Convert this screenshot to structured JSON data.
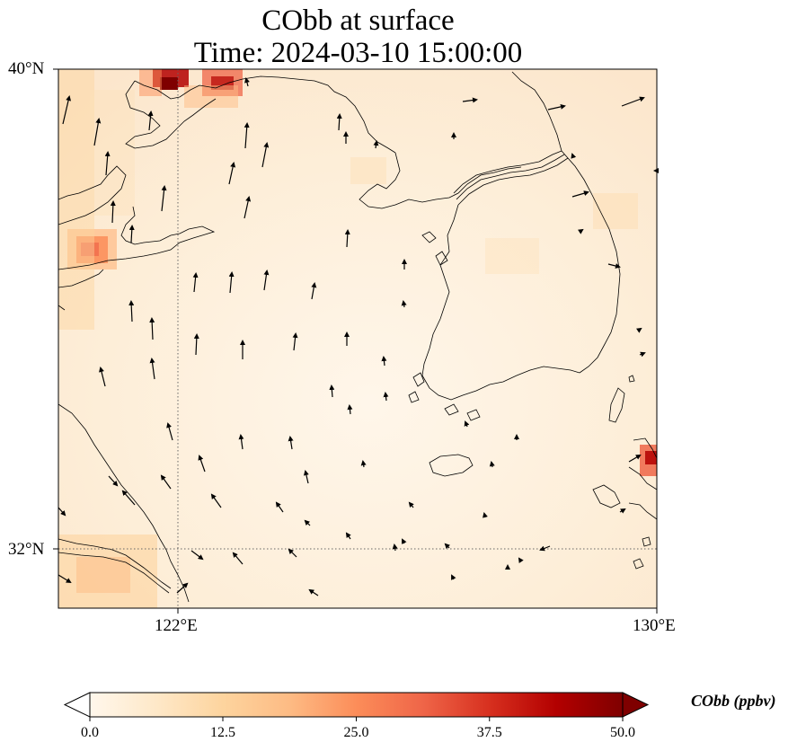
{
  "title": {
    "line1": "CObb at surface",
    "line2": "Time: 2024-03-10 15:00:00"
  },
  "axes": {
    "lat_labels": [
      "40°N",
      "32°N"
    ],
    "lon_labels": [
      "122°E",
      "130°E"
    ],
    "lat_range": [
      31,
      40
    ],
    "lon_range": [
      120,
      130
    ],
    "gridlines": {
      "lons": [
        122
      ],
      "lats": [
        32
      ],
      "style": "dotted"
    }
  },
  "colorbar": {
    "label": "CObb (ppbv)",
    "ticks": [
      "0.0",
      "12.5",
      "25.0",
      "37.5",
      "50.0"
    ],
    "range": [
      0,
      50
    ],
    "colormap": "OrRd",
    "extend": "both",
    "colors": [
      "#fff7ec",
      "#fee8c8",
      "#fdd49e",
      "#fdbb84",
      "#fc8d59",
      "#ef6548",
      "#d7301f",
      "#b30000",
      "#7f0000"
    ]
  },
  "background_color": "#fdf0dc"
}
